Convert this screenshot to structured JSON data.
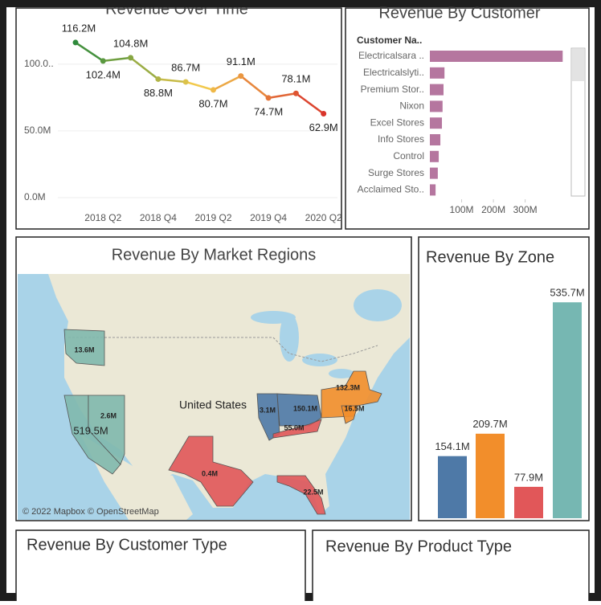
{
  "chart_data": [
    {
      "type": "line",
      "title": "Revenue Over Time",
      "categories": [
        null,
        "2018 Q2",
        null,
        "2018 Q4",
        null,
        "2019 Q2",
        null,
        "2019 Q4",
        null,
        "2020 Q2"
      ],
      "values": [
        116.2,
        102.4,
        104.8,
        88.8,
        86.7,
        80.7,
        91.1,
        74.7,
        78.1,
        62.9
      ],
      "value_labels": [
        "116.2M",
        "102.4M",
        "104.8M",
        "88.8M",
        "86.7M",
        "80.7M",
        "91.1M",
        "74.7M",
        "78.1M",
        "62.9M"
      ],
      "color_scale": [
        "#2f8a3c",
        "#f2c94c",
        "#d9342b"
      ],
      "ylim": [
        0,
        130
      ],
      "yticks": [
        {
          "value": 0,
          "label": "0.0M"
        },
        {
          "value": 50,
          "label": "50.0M"
        },
        {
          "value": 100,
          "label": "100.0.."
        }
      ],
      "grid": true
    },
    {
      "type": "hbar",
      "title": "Revenue By Customer",
      "category_header": "Customer Na..",
      "categories": [
        "Electricalsara ..",
        "Electricalslyti..",
        "Premium Stor..",
        "Nixon",
        "Excel Stores",
        "Info Stores",
        "Control",
        "Surge Stores",
        "Acclaimed Sto.."
      ],
      "values": [
        418,
        46,
        43,
        40,
        38,
        33,
        28,
        25,
        18
      ],
      "color": "#b5769f",
      "xlim": [
        0,
        440
      ],
      "xticks": [
        {
          "value": 100,
          "label": "100M"
        },
        {
          "value": 200,
          "label": "200M"
        },
        {
          "value": 300,
          "label": "300M"
        }
      ]
    },
    {
      "type": "map",
      "title": "Revenue By Market Regions",
      "country_label": "United States",
      "attribution": "© 2022 Mapbox © OpenStreetMap",
      "values": [
        13.6,
        519.5,
        2.6,
        0.4,
        3.1,
        150.1,
        55.0,
        132.3,
        16.5,
        22.5
      ],
      "value_labels": [
        "13.6M",
        "519.5M",
        "2.6M",
        "0.4M",
        "3.1M",
        "150.1M",
        "55.0M",
        "132.3M",
        "16.5M",
        "22.5M"
      ],
      "colors": [
        "#7fb8ad",
        "#7fb8ad",
        "#7fb8ad",
        "#e15759",
        "#4e79a7",
        "#4e79a7",
        "#e15759",
        "#f28e2b",
        "#f28e2b",
        "#e15759"
      ]
    },
    {
      "type": "bar",
      "title": "Revenue By Zone",
      "values": [
        154.1,
        209.7,
        77.9,
        535.7
      ],
      "value_labels": [
        "154.1M",
        "209.7M",
        "77.9M",
        "535.7M"
      ],
      "colors": [
        "#4e79a7",
        "#f28e2b",
        "#e15759",
        "#76b7b2"
      ],
      "ylim": [
        0,
        600
      ]
    }
  ],
  "panels": [
    {
      "title": "Revenue By Customer Type"
    },
    {
      "title": "Revenue By Product Type"
    }
  ]
}
